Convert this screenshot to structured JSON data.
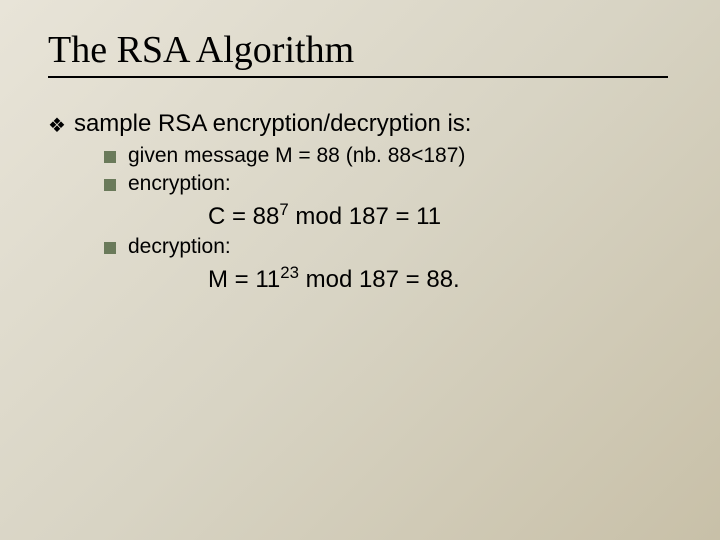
{
  "title": "The RSA Algorithm",
  "main": "sample RSA encryption/decryption is:",
  "items": {
    "given": "given message M = 88 (nb. 88<187)",
    "encryption": "encryption:",
    "decryption": "decryption:"
  },
  "formulas": {
    "c_prefix": "C = 88",
    "c_sup": "7",
    "c_suffix": " mod 187 = 11",
    "m_prefix": "M = 11",
    "m_sup": "23",
    "m_suffix": " mod 187 = 88."
  },
  "colors": {
    "bullet_square": "#6a7a5a",
    "text": "#000000"
  },
  "fonts": {
    "title_family": "Times New Roman",
    "title_size": 38,
    "body_family": "Arial",
    "main_size": 24,
    "sub_size": 21,
    "formula_size": 24
  }
}
